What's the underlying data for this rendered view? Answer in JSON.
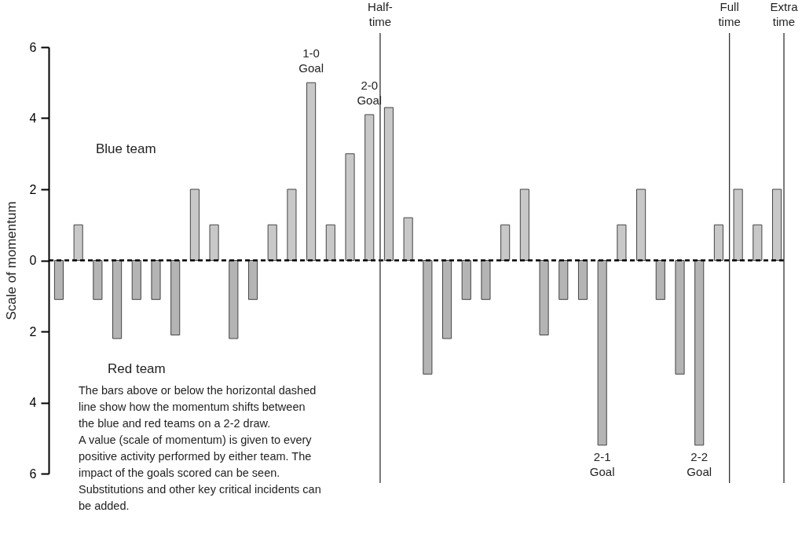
{
  "chart_data": {
    "type": "bar",
    "ylabel": "Scale of momentum",
    "categories": [
      null,
      null,
      null,
      null,
      null,
      null,
      null,
      null,
      null,
      null,
      null,
      null,
      null,
      null,
      null,
      null,
      null,
      null,
      null,
      null,
      null,
      null,
      null,
      null,
      null,
      null,
      null,
      null,
      null,
      null,
      null,
      null,
      null,
      null,
      null,
      null,
      null,
      null
    ],
    "values": [
      -1.1,
      1,
      -1.1,
      -2.2,
      -1.1,
      -1.1,
      -2.1,
      2,
      1,
      -2.2,
      -1.1,
      1,
      2,
      5,
      1,
      3,
      4.1,
      4.3,
      1.2,
      -3.2,
      -2.2,
      -1.1,
      -1.1,
      1,
      2,
      -2.1,
      -1.1,
      -1.1,
      -5.2,
      1,
      2,
      -1.1,
      -3.2,
      -5.2,
      1,
      2,
      1,
      2
    ],
    "value_labels": [
      null,
      null,
      null,
      null,
      null,
      null,
      null,
      null,
      null,
      null,
      null,
      null,
      null,
      "1-0\nGoal",
      null,
      null,
      "2-0\nGoal",
      null,
      null,
      null,
      null,
      null,
      null,
      null,
      null,
      null,
      null,
      null,
      "2-1\nGoal",
      null,
      null,
      null,
      null,
      "2-2\nGoal",
      null,
      null,
      null,
      null
    ],
    "colors": [
      "#b4b4b4",
      "#c8c8c8",
      "#b4b4b4",
      "#b4b4b4",
      "#b4b4b4",
      "#b4b4b4",
      "#b4b4b4",
      "#c8c8c8",
      "#c8c8c8",
      "#b4b4b4",
      "#b4b4b4",
      "#c8c8c8",
      "#c8c8c8",
      "#c8c8c8",
      "#c8c8c8",
      "#c8c8c8",
      "#c8c8c8",
      "#c8c8c8",
      "#c8c8c8",
      "#b4b4b4",
      "#b4b4b4",
      "#b4b4b4",
      "#b4b4b4",
      "#c8c8c8",
      "#c8c8c8",
      "#b4b4b4",
      "#b4b4b4",
      "#b4b4b4",
      "#b4b4b4",
      "#c8c8c8",
      "#c8c8c8",
      "#b4b4b4",
      "#b4b4b4",
      "#b4b4b4",
      "#c8c8c8",
      "#c8c8c8",
      "#c8c8c8",
      "#c8c8c8"
    ],
    "ylim": [
      -6,
      6
    ],
    "yticks": [
      {
        "value": -6,
        "label": "6"
      },
      {
        "value": -4,
        "label": "4"
      },
      {
        "value": -2,
        "label": "2"
      },
      {
        "value": 0,
        "label": "0"
      },
      {
        "value": 2,
        "label": "2"
      },
      {
        "value": 4,
        "label": "4"
      },
      {
        "value": 6,
        "label": "6"
      }
    ],
    "tick_labels": "y",
    "grid": false,
    "ref_lines": [
      {
        "axis": "y",
        "value": 0,
        "label": null,
        "color": "#000000",
        "line_style": "dashed"
      }
    ],
    "annotations": [
      "Half-\ntime",
      "Full\ntime",
      "Extra\ntime",
      "Blue team",
      "Red team",
      "The bars above or below the horizontal dashed\nline show how the momentum shifts between\nthe blue and red teams on a 2-2 draw.\nA value (scale of momentum) is given to every\npositive activity performed by either team. The\nimpact of the goals scored can be seen.\nSubstitutions and other key critical incidents can\nbe added."
    ]
  }
}
